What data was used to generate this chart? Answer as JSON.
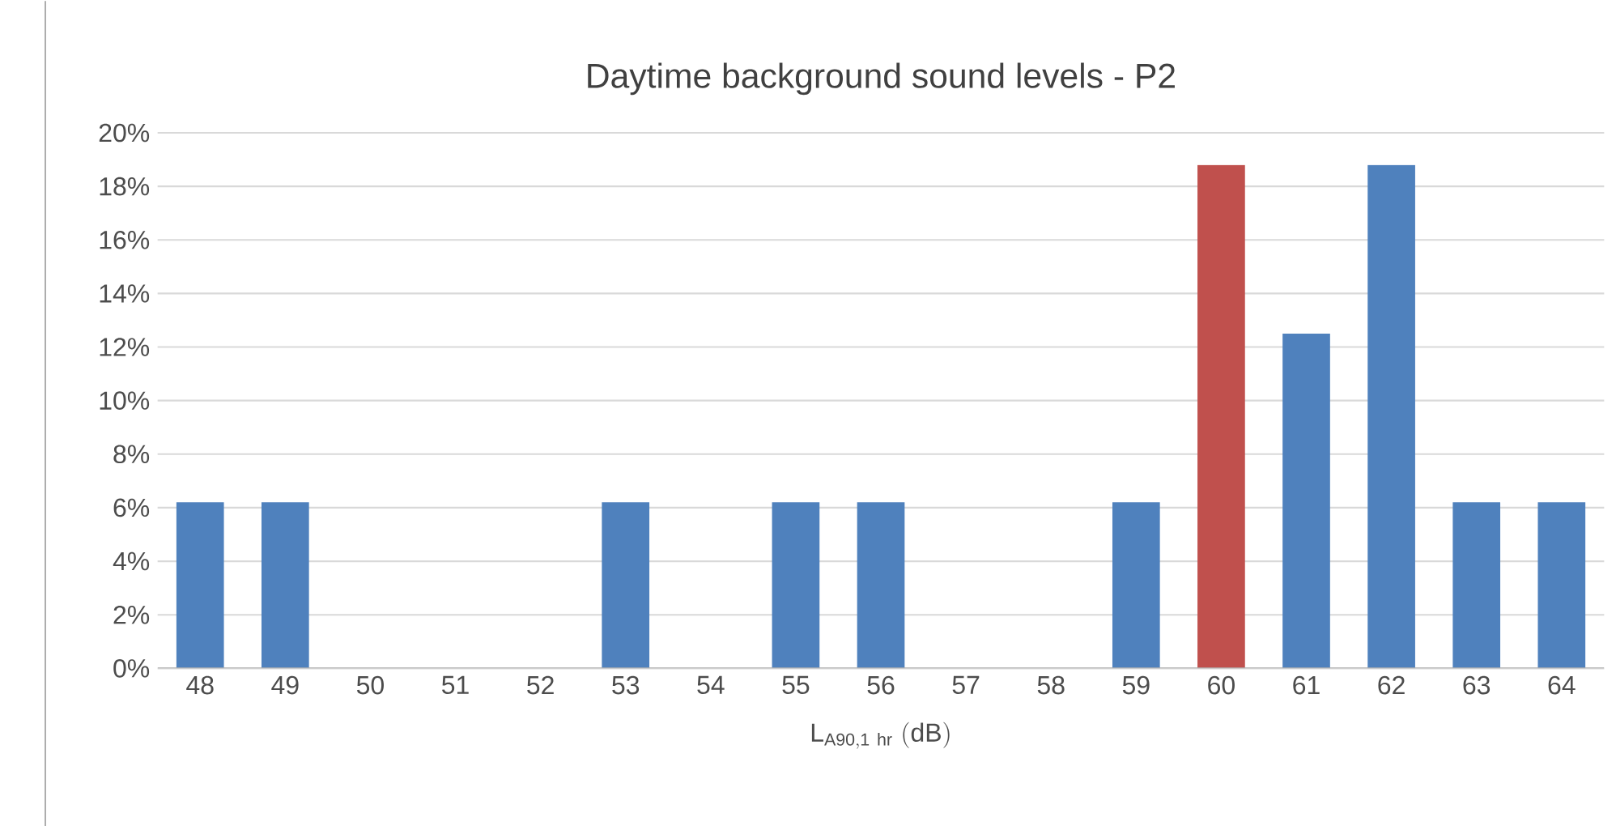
{
  "chart_data": {
    "type": "bar",
    "title": "Daytime background sound levels - P2",
    "xlabel": "\\mathrm{L}_{\\mathrm{A90,1\\ hr}}\\ \\mathrm{(dB)}",
    "categories": [
      "48",
      "49",
      "50",
      "51",
      "52",
      "53",
      "54",
      "55",
      "56",
      "57",
      "58",
      "59",
      "60",
      "61",
      "62",
      "63",
      "64"
    ],
    "values": [
      6.2,
      6.2,
      0,
      0,
      0,
      6.2,
      0,
      6.2,
      6.2,
      0,
      0,
      6.2,
      18.8,
      12.5,
      18.8,
      6.2,
      6.2
    ],
    "colors": [
      "#4f81bd",
      "#4f81bd",
      "#4f81bd",
      "#4f81bd",
      "#4f81bd",
      "#4f81bd",
      "#4f81bd",
      "#4f81bd",
      "#4f81bd",
      "#4f81bd",
      "#4f81bd",
      "#4f81bd",
      "#c0504d",
      "#4f81bd",
      "#4f81bd",
      "#4f81bd",
      "#4f81bd"
    ],
    "ylim": [
      0,
      20
    ],
    "yticks": [
      {
        "value": 0,
        "label": "0%"
      },
      {
        "value": 2,
        "label": "2%"
      },
      {
        "value": 4,
        "label": "4%"
      },
      {
        "value": 6,
        "label": "6%"
      },
      {
        "value": 8,
        "label": "8%"
      },
      {
        "value": 10,
        "label": "10%"
      },
      {
        "value": 12,
        "label": "12%"
      },
      {
        "value": 14,
        "label": "14%"
      },
      {
        "value": 16,
        "label": "16%"
      },
      {
        "value": 18,
        "label": "18%"
      },
      {
        "value": 20,
        "label": "20%"
      }
    ],
    "grid": "y"
  }
}
